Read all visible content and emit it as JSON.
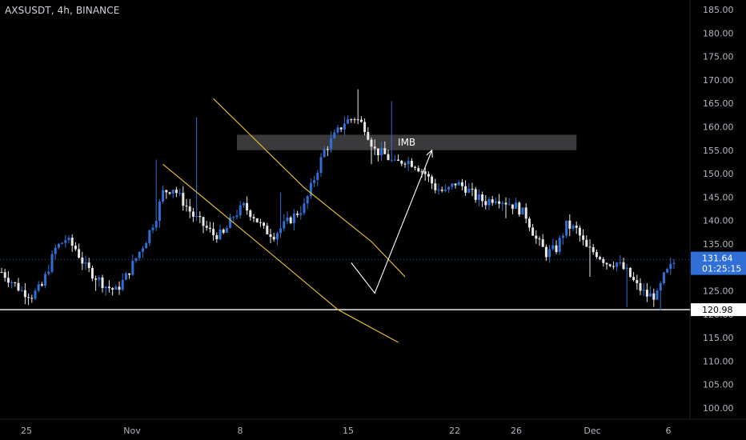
{
  "symbol_title": "AXSUSDT, 4h, BINANCE",
  "colors": {
    "background": "#000000",
    "candle_up": "#2f6fd6",
    "candle_down": "#e8e8e8",
    "channel": "#e0b92c",
    "support": "#ffffff",
    "imbalance_box": "#3a3a3c",
    "projection": "#ffffff",
    "current_tag": "#2f6fd6"
  },
  "chart_data": {
    "type": "candlestick",
    "title": "AXSUSDT, 4h, BINANCE",
    "ylim": [
      98,
      187
    ],
    "y_ticks": [
      "185.00",
      "180.00",
      "175.00",
      "170.00",
      "165.00",
      "160.00",
      "155.00",
      "150.00",
      "145.00",
      "140.00",
      "135.00",
      "130.00",
      "125.00",
      "120.00",
      "115.00",
      "110.00",
      "105.00",
      "100.00"
    ],
    "x_ticks": [
      "25",
      "Nov",
      "8",
      "15",
      "22",
      "26",
      "Dec",
      "6"
    ],
    "close_path": [
      [
        0,
        129
      ],
      [
        3,
        127
      ],
      [
        6,
        125
      ],
      [
        9,
        124
      ],
      [
        12,
        126
      ],
      [
        14,
        130
      ],
      [
        16,
        134
      ],
      [
        19,
        136
      ],
      [
        22,
        134
      ],
      [
        25,
        130
      ],
      [
        28,
        128
      ],
      [
        31,
        126
      ],
      [
        34,
        125
      ],
      [
        37,
        128
      ],
      [
        40,
        132
      ],
      [
        43,
        136
      ],
      [
        46,
        141
      ],
      [
        48,
        146
      ],
      [
        51,
        147
      ],
      [
        54,
        144
      ],
      [
        57,
        141
      ],
      [
        60,
        139
      ],
      [
        63,
        137
      ],
      [
        66,
        137
      ],
      [
        69,
        141
      ],
      [
        72,
        143
      ],
      [
        75,
        141
      ],
      [
        78,
        138
      ],
      [
        81,
        137
      ],
      [
        84,
        139
      ],
      [
        87,
        141
      ],
      [
        90,
        143
      ],
      [
        93,
        149
      ],
      [
        96,
        155
      ],
      [
        99,
        158
      ],
      [
        102,
        161
      ],
      [
        105,
        162
      ],
      [
        108,
        160
      ],
      [
        111,
        155
      ],
      [
        114,
        154
      ],
      [
        117,
        152
      ],
      [
        120,
        153
      ],
      [
        123,
        152
      ],
      [
        126,
        150
      ],
      [
        129,
        147
      ],
      [
        132,
        146
      ],
      [
        135,
        148
      ],
      [
        138,
        147
      ],
      [
        141,
        145
      ],
      [
        144,
        144
      ],
      [
        147,
        145
      ],
      [
        150,
        144
      ],
      [
        153,
        143
      ],
      [
        156,
        141
      ],
      [
        159,
        136
      ],
      [
        162,
        133
      ],
      [
        165,
        134
      ],
      [
        168,
        139
      ],
      [
        171,
        138
      ],
      [
        174,
        134
      ],
      [
        177,
        133
      ],
      [
        180,
        131
      ],
      [
        183,
        131
      ],
      [
        186,
        129
      ],
      [
        189,
        126
      ],
      [
        192,
        124
      ],
      [
        195,
        124
      ],
      [
        197,
        128
      ],
      [
        200,
        131
      ]
    ],
    "annotations": {
      "imbalance_zone": {
        "label": "IMB",
        "y_low": 155.0,
        "y_high": 158.3
      },
      "support_level": 120.98,
      "channel": {
        "upper": [
          [
            63,
            166
          ],
          [
            90,
            147
          ],
          [
            110,
            135.5
          ],
          [
            120,
            128
          ]
        ],
        "lower": [
          [
            48,
            152
          ],
          [
            80,
            133
          ],
          [
            100,
            121
          ],
          [
            118,
            114
          ]
        ]
      },
      "projection": [
        [
          104,
          131
        ],
        [
          111,
          124.5
        ],
        [
          128,
          155
        ]
      ]
    },
    "current_price": "131.64",
    "countdown": "01:25:15",
    "support_label": "120.98"
  }
}
